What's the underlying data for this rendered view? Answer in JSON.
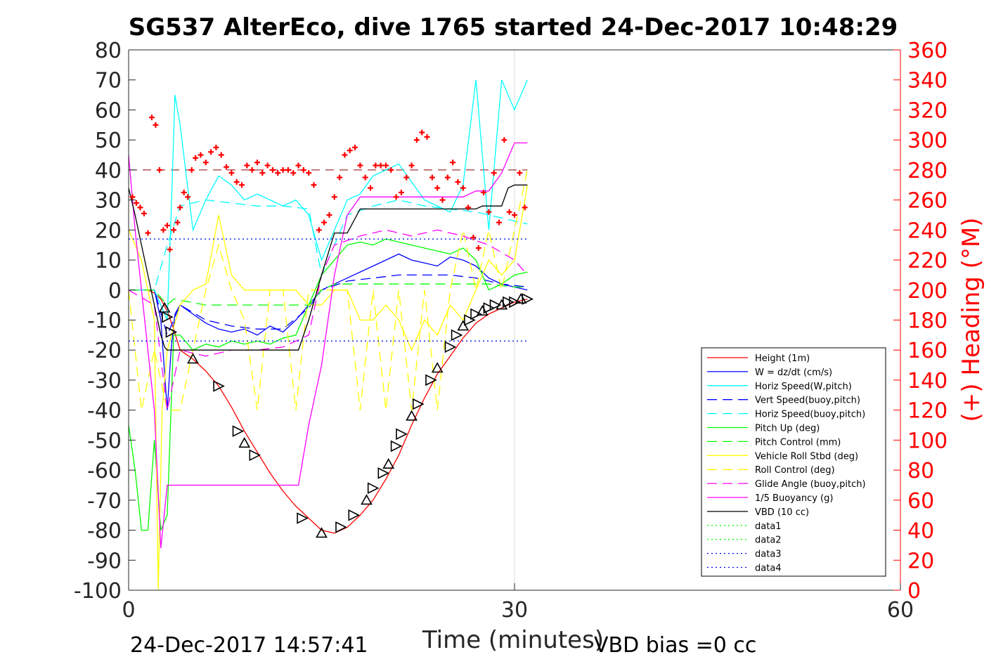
{
  "chart_data": {
    "type": "line",
    "title": "SG537 AlterEco, dive 1765 started 24-Dec-2017 10:48:29",
    "xlabel": "Time (minutes)",
    "ylabel_right": "(+) Heading (°M)",
    "xlim": [
      0,
      60
    ],
    "ylim": [
      -100,
      80
    ],
    "ylim_right": [
      0,
      360
    ],
    "x_ticks": [
      "0",
      "30",
      "60"
    ],
    "y_ticks": [
      "80",
      "70",
      "60",
      "50",
      "40",
      "30",
      "20",
      "10",
      "0",
      "-10",
      "-20",
      "-30",
      "-40",
      "-50",
      "-60",
      "-70",
      "-80",
      "-90",
      "-100"
    ],
    "y_ticks_right": [
      "360",
      "340",
      "320",
      "300",
      "280",
      "260",
      "240",
      "220",
      "200",
      "180",
      "160",
      "140",
      "120",
      "100",
      "80",
      "60",
      "40",
      "20",
      "0"
    ],
    "grid": "x-only at 30",
    "legend_position": "bottom-right",
    "footer_left": "24-Dec-2017 14:57:41",
    "footer_right": "VBD bias =0 cc",
    "legend": [
      {
        "label": "Height (1m)",
        "color": "#ff0000",
        "dash": "solid"
      },
      {
        "label": "W = dz/dt (cm/s)",
        "color": "#0000ff",
        "dash": "solid"
      },
      {
        "label": "Horiz Speed(W,pitch)",
        "color": "#00ffff",
        "dash": "solid"
      },
      {
        "label": "Vert Speed(buoy,pitch)",
        "color": "#0000ff",
        "dash": "dashed"
      },
      {
        "label": "Horiz Speed(buoy,pitch)",
        "color": "#00ffff",
        "dash": "dashed"
      },
      {
        "label": "Pitch Up (deg)",
        "color": "#00ff00",
        "dash": "solid"
      },
      {
        "label": "Pitch Control (mm)",
        "color": "#00ff00",
        "dash": "dashed"
      },
      {
        "label": "Vehicle Roll Stbd (deg)",
        "color": "#ffff00",
        "dash": "solid"
      },
      {
        "label": "Roll Control (deg)",
        "color": "#ffff00",
        "dash": "dashed"
      },
      {
        "label": "Glide Angle (buoy,pitch)",
        "color": "#ff00ff",
        "dash": "dashed"
      },
      {
        "label": "1/5 Buoyancy (g)",
        "color": "#ff00ff",
        "dash": "solid"
      },
      {
        "label": "VBD (10 cc)",
        "color": "#000000",
        "dash": "solid"
      },
      {
        "label": "data1",
        "color": "#00ff00",
        "dash": "dotted"
      },
      {
        "label": "data2",
        "color": "#00ff00",
        "dash": "dotted"
      },
      {
        "label": "data3",
        "color": "#0000ff",
        "dash": "dotted"
      },
      {
        "label": "data4",
        "color": "#0000ff",
        "dash": "dotted"
      }
    ],
    "series": [
      {
        "name": "Height (1m)",
        "color": "#ff0000",
        "dash": "solid",
        "x": [
          0,
          0.5,
          1,
          1.5,
          2,
          2.5,
          3,
          3.5,
          4,
          5,
          6,
          7,
          8,
          9,
          10,
          11,
          12,
          13,
          14,
          15,
          16,
          17,
          18,
          19,
          20,
          21,
          22,
          23,
          24,
          25,
          26,
          27,
          28,
          29,
          30,
          31
        ],
        "y": [
          0,
          0,
          0,
          0,
          -1,
          -3,
          -7,
          -13,
          -20,
          -23,
          -27,
          -32,
          -39,
          -47,
          -54,
          -61,
          -67,
          -72,
          -76,
          -80,
          -81,
          -79,
          -75,
          -70,
          -63,
          -55,
          -45,
          -36,
          -28,
          -22,
          -16,
          -11,
          -8,
          -6,
          -4,
          -3
        ]
      },
      {
        "name": "W = dz/dt (cm/s)",
        "color": "#0000ff",
        "dash": "solid",
        "x": [
          0,
          2,
          2.5,
          3,
          3.3,
          3.6,
          4,
          5,
          6,
          7,
          8,
          9,
          10,
          11,
          12,
          13,
          14,
          15,
          16,
          17,
          18,
          19,
          20,
          21,
          22,
          23,
          24,
          25,
          26,
          27,
          28,
          29,
          30,
          31
        ],
        "y": [
          0,
          0,
          -10,
          -40,
          -20,
          -8,
          -5,
          -8,
          -11,
          -13,
          -14,
          -13,
          -15,
          -12,
          -14,
          -10,
          -5,
          0,
          2,
          4,
          6,
          8,
          10,
          12,
          10,
          9,
          8,
          11,
          10,
          8,
          4,
          2,
          1,
          0
        ]
      },
      {
        "name": "Horiz Speed(W,pitch)",
        "color": "#00ffff",
        "dash": "solid",
        "x": [
          0,
          2,
          3,
          3.3,
          3.6,
          4,
          5,
          6,
          7,
          8,
          9,
          10,
          11,
          12,
          13,
          14,
          15,
          16,
          17,
          18,
          19,
          20,
          21,
          22,
          23,
          24,
          25,
          26,
          27,
          28,
          29,
          30,
          31
        ],
        "y": [
          0,
          0,
          -10,
          25,
          65,
          55,
          20,
          30,
          38,
          35,
          30,
          32,
          30,
          28,
          30,
          25,
          10,
          20,
          30,
          32,
          38,
          40,
          42,
          36,
          30,
          28,
          26,
          35,
          70,
          20,
          70,
          60,
          70
        ]
      },
      {
        "name": "Vert Speed(buoy,pitch)",
        "color": "#0000ff",
        "dash": "dashed",
        "x": [
          0,
          2,
          3,
          4,
          6,
          8,
          10,
          12,
          14,
          15,
          17,
          19,
          21,
          23,
          25,
          27,
          29,
          31
        ],
        "y": [
          0,
          0,
          -15,
          -5,
          -10,
          -12,
          -13,
          -13,
          -6,
          0,
          3,
          4,
          5,
          5,
          5,
          4,
          2,
          1
        ]
      },
      {
        "name": "Horiz Speed(buoy,pitch)",
        "color": "#00ffff",
        "dash": "dashed",
        "x": [
          0,
          2,
          3,
          4,
          6,
          8,
          10,
          12,
          14,
          15,
          17,
          19,
          21,
          23,
          25,
          27,
          29,
          31
        ],
        "y": [
          0,
          0,
          15,
          28,
          30,
          29,
          28,
          28,
          27,
          5,
          25,
          28,
          30,
          28,
          27,
          26,
          24,
          22
        ]
      },
      {
        "name": "Pitch Up (deg)",
        "color": "#00ff00",
        "dash": "solid",
        "x": [
          0,
          0.5,
          1,
          1.5,
          2,
          2.5,
          3,
          3.5,
          4,
          5,
          6,
          7,
          8,
          9,
          10,
          11,
          12,
          13,
          14,
          15,
          16,
          17,
          18,
          19,
          20,
          21,
          22,
          23,
          24,
          25,
          26,
          27,
          28,
          29,
          30,
          31
        ],
        "y": [
          -45,
          -60,
          -80,
          -80,
          -50,
          -80,
          -75,
          -15,
          -15,
          -20,
          -18,
          -19,
          -17,
          -18,
          -17,
          -18,
          -16,
          -15,
          -5,
          5,
          10,
          15,
          16,
          15,
          17,
          16,
          15,
          14,
          13,
          12,
          14,
          10,
          0,
          2,
          5,
          6
        ]
      },
      {
        "name": "Pitch Control (mm)",
        "color": "#00ff00",
        "dash": "dashed",
        "x": [
          0,
          2,
          3,
          3.5,
          6,
          9,
          12,
          14,
          15,
          16,
          18,
          20,
          22,
          24,
          26,
          28,
          30,
          31
        ],
        "y": [
          0,
          0,
          -5,
          -3,
          -5,
          -5,
          -5,
          -5,
          0,
          2,
          2,
          2,
          2,
          2,
          2,
          2,
          1,
          1
        ]
      },
      {
        "name": "Vehicle Roll Stbd (deg)",
        "color": "#ffff00",
        "dash": "solid",
        "x": [
          0,
          1,
          2,
          2.3,
          2.6,
          3,
          4,
          5,
          6,
          7,
          8,
          9,
          10,
          11,
          12,
          13,
          14,
          15,
          16,
          17,
          18,
          19,
          20,
          21,
          22,
          23,
          24,
          25,
          26,
          27,
          28,
          29,
          30,
          31
        ],
        "y": [
          20,
          10,
          -10,
          -100,
          -40,
          -20,
          -5,
          0,
          2,
          25,
          5,
          0,
          0,
          0,
          0,
          0,
          -5,
          -5,
          0,
          0,
          -10,
          -10,
          -5,
          -10,
          -20,
          -10,
          -15,
          -5,
          -10,
          0,
          10,
          5,
          10,
          35
        ]
      },
      {
        "name": "Roll Control (deg)",
        "color": "#ffff00",
        "dash": "dashed",
        "x": [
          0,
          1,
          2,
          3,
          4,
          5,
          6,
          7,
          8,
          9,
          10,
          11,
          12,
          13,
          14,
          15,
          16,
          17,
          18,
          19,
          20,
          21,
          22,
          23,
          24,
          25,
          26,
          27,
          28,
          29,
          30,
          31
        ],
        "y": [
          0,
          -40,
          -20,
          -40,
          -40,
          -20,
          0,
          15,
          0,
          -10,
          -40,
          0,
          0,
          -40,
          0,
          0,
          0,
          0,
          -40,
          0,
          -40,
          0,
          -40,
          0,
          -40,
          0,
          20,
          0,
          20,
          0,
          20,
          40
        ]
      },
      {
        "name": "Glide Angle (buoy,pitch)",
        "color": "#ff00ff",
        "dash": "dashed",
        "x": [
          0,
          2,
          3,
          4,
          6,
          8,
          10,
          12,
          14,
          15,
          16,
          18,
          20,
          22,
          24,
          26,
          28,
          30,
          31
        ],
        "y": [
          0,
          -5,
          -40,
          -20,
          -22,
          -20,
          -20,
          -19,
          -15,
          5,
          15,
          18,
          20,
          18,
          20,
          18,
          15,
          10,
          5
        ]
      },
      {
        "name": "1/5 Buoyancy (g)",
        "color": "#ff00ff",
        "dash": "solid",
        "x": [
          0,
          0.5,
          1,
          1.5,
          2,
          2.5,
          3,
          4,
          6,
          8,
          10,
          12,
          13.2,
          14,
          15,
          16,
          17,
          18,
          20,
          22,
          24,
          26,
          27,
          28,
          29,
          30,
          31
        ],
        "y": [
          45,
          20,
          0,
          -20,
          -40,
          -86,
          -65,
          -65,
          -65,
          -65,
          -65,
          -65,
          -65,
          -45,
          -25,
          5,
          25,
          31,
          31,
          31,
          31,
          31,
          33,
          33,
          39,
          49,
          49
        ]
      },
      {
        "name": "VBD (10 cc)",
        "color": "#000000",
        "dash": "solid",
        "x": [
          0,
          0.5,
          1,
          1.5,
          2,
          2.5,
          2.8,
          3,
          4,
          6,
          8,
          10,
          12,
          13.2,
          14,
          15,
          16,
          17,
          18,
          20,
          22,
          24,
          26,
          27,
          27.5,
          28,
          29,
          29.5,
          30,
          31
        ],
        "y": [
          34,
          25,
          15,
          5,
          -5,
          -15,
          -19,
          -20,
          -20,
          -20,
          -20,
          -20,
          -20,
          -20,
          -10,
          5,
          19,
          19,
          27,
          27,
          27,
          27,
          27,
          27,
          28,
          28,
          28,
          34,
          35,
          35
        ]
      },
      {
        "name": "data1",
        "color": "#00ff00",
        "dash": "dotted",
        "x": [
          0,
          31
        ],
        "y": [
          17,
          17
        ]
      },
      {
        "name": "data2",
        "color": "#00ff00",
        "dash": "dotted",
        "x": [
          0,
          31
        ],
        "y": [
          -17,
          -17
        ]
      },
      {
        "name": "data3",
        "color": "#0000ff",
        "dash": "dotted",
        "x": [
          0,
          31
        ],
        "y": [
          17,
          17
        ]
      },
      {
        "name": "data4",
        "color": "#0000ff",
        "dash": "dotted",
        "x": [
          0,
          31
        ],
        "y": [
          -17,
          -17
        ]
      }
    ],
    "reference_line": {
      "y": 40,
      "color": "#8b0000",
      "dash": "dashed",
      "xlim": [
        0,
        31
      ]
    },
    "heading_markers": {
      "color": "#ff0000",
      "marker": "+",
      "x": [
        0.3,
        0.6,
        0.9,
        1.2,
        1.5,
        1.8,
        2.1,
        2.4,
        2.7,
        3.0,
        3.2,
        3.5,
        3.8,
        4.0,
        4.3,
        4.6,
        4.9,
        5.2,
        5.6,
        6.0,
        6.4,
        6.8,
        7.2,
        7.6,
        8.0,
        8.4,
        8.8,
        9.2,
        9.6,
        10.0,
        10.4,
        10.8,
        11.2,
        11.6,
        12.0,
        12.4,
        12.8,
        13.2,
        13.6,
        14.0,
        14.4,
        14.8,
        15.2,
        15.6,
        16.0,
        16.4,
        16.8,
        17.2,
        17.6,
        18.0,
        18.4,
        18.8,
        19.2,
        19.6,
        20.0,
        20.4,
        20.8,
        21.2,
        21.6,
        22.0,
        22.4,
        22.8,
        23.2,
        23.6,
        24.0,
        24.4,
        24.8,
        25.2,
        25.6,
        26.0,
        26.4,
        26.8,
        27.2,
        27.6,
        28.0,
        28.4,
        28.8,
        29.2,
        29.6,
        30.0,
        30.4,
        30.8
      ],
      "y": [
        262,
        258,
        255,
        251,
        238,
        315,
        310,
        280,
        240,
        243,
        227,
        240,
        245,
        255,
        265,
        262,
        280,
        288,
        290,
        285,
        292,
        295,
        290,
        282,
        278,
        272,
        270,
        283,
        280,
        285,
        278,
        283,
        280,
        278,
        280,
        280,
        278,
        283,
        280,
        278,
        270,
        240,
        245,
        250,
        262,
        275,
        290,
        293,
        295,
        283,
        275,
        268,
        283,
        283,
        283,
        280,
        262,
        265,
        275,
        283,
        300,
        305,
        302,
        275,
        268,
        260,
        275,
        285,
        272,
        268,
        255,
        235,
        228,
        265,
        252,
        278,
        245,
        300,
        252,
        250,
        278,
        255
      ]
    },
    "depth_markers": {
      "color": "#000000",
      "marker": "triangle",
      "x": [
        2.8,
        3.0,
        3.3,
        5.0,
        7.0,
        8.5,
        9.0,
        9.8,
        13.5,
        15.0,
        16.5,
        17.5,
        18.5,
        19.0,
        19.8,
        20.2,
        20.8,
        21.2,
        22.0,
        22.5,
        23.5,
        24.0,
        25.0,
        25.5,
        26.0,
        26.5,
        27.0,
        27.5,
        28.0,
        28.5,
        29.0,
        29.5,
        30.0,
        30.5,
        31.0
      ],
      "y": [
        -6,
        -9,
        -14,
        -23,
        -32,
        -47,
        -51,
        -55,
        -76,
        -81,
        -79,
        -75,
        -70,
        -66,
        -61,
        -58,
        -52,
        -48,
        -42,
        -38,
        -30,
        -26,
        -19,
        -15,
        -12,
        -10,
        -8,
        -7,
        -6,
        -5,
        -5,
        -4,
        -4,
        -3,
        -3
      ]
    }
  }
}
